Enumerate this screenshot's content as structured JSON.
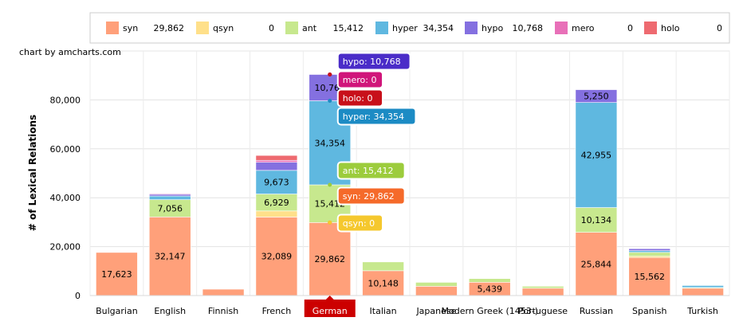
{
  "credit": "chart by amcharts.com",
  "chart_data": {
    "type": "bar",
    "stacked": true,
    "ylabel": "# of Lexical Relations",
    "xlabel": "",
    "ylim": [
      0,
      100000
    ],
    "yticks": [
      0,
      20000,
      40000,
      60000,
      80000
    ],
    "grid": true,
    "legend_position": "top",
    "categories": [
      "Bulgarian",
      "English",
      "Finnish",
      "French",
      "German",
      "Italian",
      "Japanese",
      "Modern Greek (1453-)",
      "Portuguese",
      "Russian",
      "Spanish",
      "Turkish"
    ],
    "series": [
      {
        "name": "syn",
        "color": "#FFA07A",
        "values": [
          17623,
          32147,
          2600,
          32089,
          29862,
          10148,
          3800,
          5439,
          3000,
          25844,
          15562,
          3000
        ]
      },
      {
        "name": "qsyn",
        "color": "#FFE08A",
        "values": [
          0,
          0,
          0,
          2500,
          0,
          0,
          0,
          0,
          0,
          0,
          500,
          0
        ]
      },
      {
        "name": "ant",
        "color": "#C7E88E",
        "values": [
          0,
          7056,
          0,
          6929,
          15412,
          3600,
          1600,
          1500,
          800,
          10134,
          1600,
          300
        ]
      },
      {
        "name": "hyper",
        "color": "#5FB8E0",
        "values": [
          0,
          1500,
          0,
          9673,
          34354,
          0,
          0,
          0,
          0,
          42955,
          700,
          800
        ]
      },
      {
        "name": "hypo",
        "color": "#8470E0",
        "values": [
          0,
          700,
          0,
          3300,
          10768,
          0,
          0,
          0,
          0,
          5250,
          800,
          0
        ]
      },
      {
        "name": "mero",
        "color": "#E870B8",
        "values": [
          0,
          300,
          0,
          800,
          0,
          0,
          0,
          0,
          0,
          0,
          0,
          0
        ]
      },
      {
        "name": "holo",
        "color": "#EE6A70",
        "values": [
          0,
          0,
          0,
          2000,
          0,
          0,
          0,
          0,
          0,
          0,
          0,
          0
        ]
      }
    ],
    "data_labels": [
      {
        "category": "Bulgarian",
        "series": "syn",
        "text": "17,623"
      },
      {
        "category": "English",
        "series": "syn",
        "text": "32,147"
      },
      {
        "category": "English",
        "series": "ant",
        "text": "7,056"
      },
      {
        "category": "French",
        "series": "syn",
        "text": "32,089"
      },
      {
        "category": "French",
        "series": "ant",
        "text": "6,929"
      },
      {
        "category": "French",
        "series": "hyper",
        "text": "9,673"
      },
      {
        "category": "German",
        "series": "syn",
        "text": "29,862"
      },
      {
        "category": "German",
        "series": "ant",
        "text": "15,412"
      },
      {
        "category": "German",
        "series": "hyper",
        "text": "34,354"
      },
      {
        "category": "German",
        "series": "hypo",
        "text": "10,768"
      },
      {
        "category": "Italian",
        "series": "syn",
        "text": "10,148"
      },
      {
        "category": "Modern Greek (1453-)",
        "series": "syn",
        "text": "5,439"
      },
      {
        "category": "Russian",
        "series": "syn",
        "text": "25,844"
      },
      {
        "category": "Russian",
        "series": "ant",
        "text": "10,134"
      },
      {
        "category": "Russian",
        "series": "hyper",
        "text": "42,955"
      },
      {
        "category": "Russian",
        "series": "hypo",
        "text": "5,250"
      },
      {
        "category": "Spanish",
        "series": "syn",
        "text": "15,562"
      }
    ],
    "legend": [
      {
        "name": "syn",
        "value": "29,862",
        "color": "#FFA07A"
      },
      {
        "name": "qsyn",
        "value": "0",
        "color": "#FFE08A"
      },
      {
        "name": "ant",
        "value": "15,412",
        "color": "#C7E88E"
      },
      {
        "name": "hyper",
        "value": "34,354",
        "color": "#5FB8E0"
      },
      {
        "name": "hypo",
        "value": "10,768",
        "color": "#8470E0"
      },
      {
        "name": "mero",
        "value": "0",
        "color": "#E870B8"
      },
      {
        "name": "holo",
        "value": "0",
        "color": "#EE6A70"
      }
    ],
    "highlighted_category": "German",
    "highlight_color": "#CC0000",
    "tooltips": [
      {
        "text": "hypo: 10,768",
        "color": "#4A2CC8",
        "series": "hypo",
        "point": "top"
      },
      {
        "text": "mero: 0",
        "color": "#D0157A",
        "series": "mero",
        "point": "top"
      },
      {
        "text": "holo: 0",
        "color": "#C8101A",
        "series": "holo",
        "point": "top"
      },
      {
        "text": "hyper: 34,354",
        "color": "#1C8BC4",
        "series": "hyper",
        "point": "top"
      },
      {
        "text": "ant: 15,412",
        "color": "#9CCC3C",
        "series": "ant",
        "point": "top"
      },
      {
        "text": "syn: 29,862",
        "color": "#F56A2A",
        "series": "syn",
        "point": "top"
      },
      {
        "text": "qsyn: 0",
        "color": "#F5C82E",
        "series": "qsyn",
        "point": "top"
      }
    ]
  }
}
